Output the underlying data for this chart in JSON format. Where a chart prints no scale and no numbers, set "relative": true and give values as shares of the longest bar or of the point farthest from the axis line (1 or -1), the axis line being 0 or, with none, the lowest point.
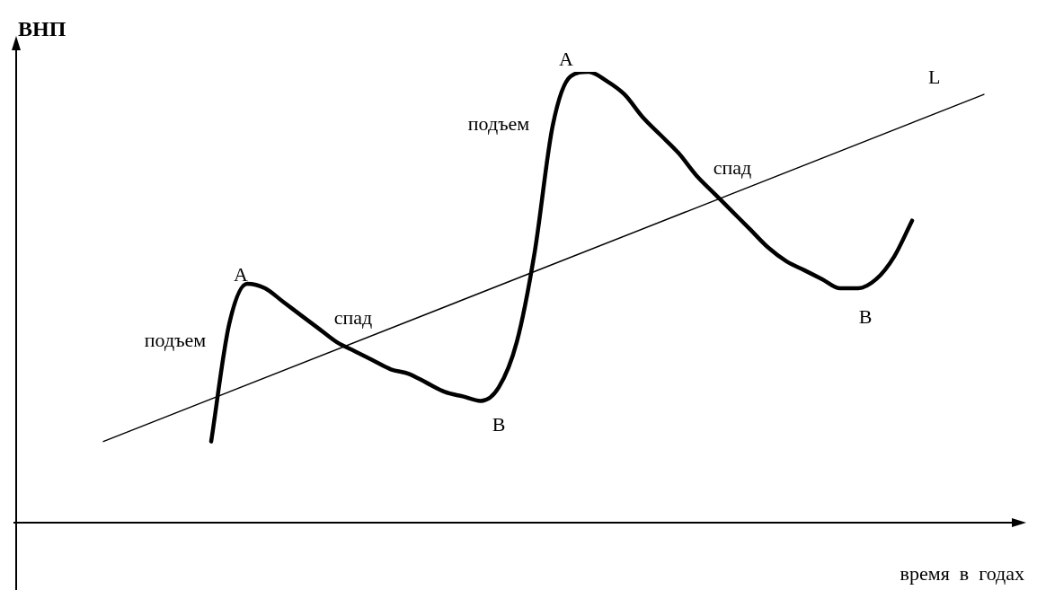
{
  "chart_data": {
    "type": "line",
    "relative": true,
    "ylabel": "ВНП",
    "xlabel": "время в годах",
    "legend": false,
    "marker": "none",
    "categories": [
      null,
      null,
      null,
      null,
      null,
      null,
      null,
      null,
      null,
      null,
      null,
      null,
      null,
      null,
      null,
      null,
      null,
      null,
      null,
      null,
      null,
      null,
      null,
      null,
      null,
      null,
      null,
      null,
      null,
      null,
      null,
      null,
      null,
      null,
      null,
      null,
      null,
      null,
      null,
      null,
      null,
      null,
      null,
      null,
      null,
      null,
      null,
      null,
      null,
      null
    ],
    "series": [
      {
        "color": "#000000",
        "values": [
          null,
          null,
          null,
          null,
          null,
          null,
          0.18,
          0.44,
          0.53,
          0.52,
          0.49,
          0.46,
          0.43,
          0.4,
          0.38,
          0.36,
          0.34,
          0.33,
          0.31,
          0.29,
          0.28,
          0.27,
          0.3,
          0.4,
          0.6,
          0.88,
          0.99,
          1.0,
          0.98,
          0.95,
          0.9,
          0.86,
          0.82,
          0.77,
          0.73,
          0.69,
          0.65,
          0.61,
          0.58,
          0.56,
          0.54,
          0.52,
          0.52,
          0.54,
          0.59,
          0.67,
          null,
          null,
          null,
          null
        ]
      },
      {
        "name": "L",
        "color": "#000000",
        "line_style": "solid",
        "values": [
          0.18,
          null,
          null,
          null,
          null,
          null,
          null,
          null,
          null,
          null,
          null,
          null,
          null,
          null,
          null,
          null,
          null,
          null,
          null,
          null,
          null,
          null,
          null,
          null,
          null,
          null,
          null,
          null,
          null,
          null,
          null,
          null,
          null,
          null,
          null,
          null,
          null,
          null,
          null,
          null,
          null,
          null,
          null,
          null,
          null,
          null,
          null,
          null,
          null,
          0.95
        ]
      }
    ],
    "annotations": [
      "A",
      "подъем",
      "спад",
      "B",
      "A",
      "подъем",
      "спад",
      "B"
    ]
  }
}
